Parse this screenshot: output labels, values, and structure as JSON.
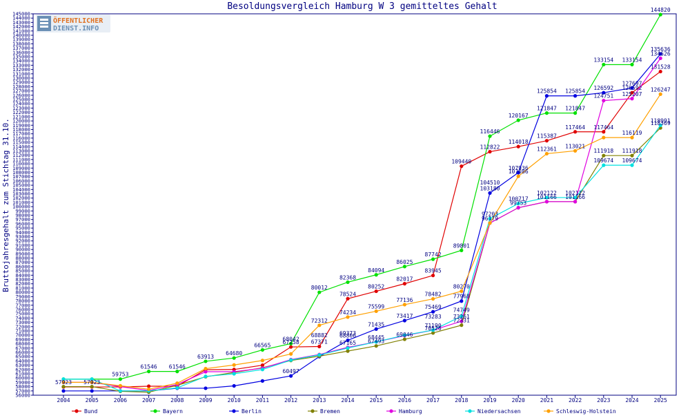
{
  "title": "Besoldungsvergleich Hamburg W 3 gemitteltes Gehalt",
  "logo": {
    "line1": "ÖFFENTLICHER",
    "line2": "DIENST.INFO"
  },
  "chart_data": {
    "type": "line",
    "title": "Besoldungsvergleich Hamburg W 3 gemitteltes Gehalt",
    "xlabel": "",
    "ylabel": "Bruttojahresgehalt zum Stichtag 31.10.",
    "ylim": [
      56000,
      145000
    ],
    "ytick_step": 1000,
    "grid": false,
    "legend_position": "bottom",
    "x": [
      "2004",
      "2005",
      "2006",
      "2007",
      "2008",
      "2009",
      "2010",
      "2011",
      "2012",
      "2013",
      "2014",
      "2015",
      "2016",
      "2017",
      "2018",
      "2019",
      "2020",
      "2021",
      "2022",
      "2023",
      "2024",
      "2025"
    ],
    "series": [
      {
        "name": "Bund",
        "color": "#e00000",
        "values": [
          57923,
          57923,
          57923,
          58100,
          58100,
          61947,
          62000,
          63000,
          67258,
          67371,
          78524,
          80252,
          82017,
          83945,
          109440,
          112822,
          114018,
          115387,
          117464,
          117464,
          126592,
          131528
        ]
      },
      {
        "name": "Bayern",
        "color": "#00e000",
        "values": [
          59753,
          59753,
          59753,
          61546,
          61546,
          63913,
          64680,
          66565,
          68042,
          80012,
          82368,
          84094,
          86025,
          87742,
          89801,
          116446,
          120167,
          121847,
          121847,
          133154,
          133154,
          144820
        ]
      },
      {
        "name": "Berlin",
        "color": "#0000e0",
        "values": [
          57000,
          57000,
          57000,
          57000,
          57623,
          57623,
          58173,
          59324,
          60497,
          65000,
          68806,
          71435,
          73417,
          75469,
          77968,
          103180,
          107936,
          125854,
          125854,
          126592,
          127697,
          135636
        ]
      },
      {
        "name": "Bremen",
        "color": "#808000",
        "values": [
          58000,
          58000,
          56900,
          56700,
          58300,
          60300,
          61300,
          62400,
          64100,
          65100,
          66300,
          67493,
          69046,
          70526,
          72331,
          96179,
          99753,
          101166,
          101166,
          111918,
          111918,
          118369
        ]
      },
      {
        "name": "Hamburg",
        "color": "#e000e0",
        "values": [
          59000,
          59000,
          58000,
          57100,
          58500,
          61477,
          61477,
          62300,
          64300,
          65500,
          67165,
          68445,
          69880,
          71190,
          73261,
          96179,
          99753,
          101166,
          101166,
          124751,
          125207,
          134626
        ]
      },
      {
        "name": "Niedersachsen",
        "color": "#00e0e0",
        "values": [
          59753,
          59753,
          57000,
          57000,
          57700,
          60389,
          61000,
          62000,
          64200,
          65394,
          67000,
          68445,
          70000,
          71190,
          74440,
          97203,
          100717,
          102122,
          102122,
          109674,
          109674,
          118991
        ]
      },
      {
        "name": "Schleswig-Holstein",
        "color": "#ffa000",
        "values": [
          59000,
          59000,
          58200,
          57400,
          58800,
          62200,
          63050,
          64100,
          65630,
          72312,
          74234,
          75599,
          77136,
          78482,
          80270,
          96179,
          107086,
          112361,
          113021,
          116119,
          116119,
          126247
        ]
      }
    ],
    "data_labels": [
      {
        "x": "2004",
        "y": 57923
      },
      {
        "x": "2005",
        "y": 57923
      },
      {
        "x": "2006",
        "y": 59753
      },
      {
        "x": "2007",
        "y": 61546
      },
      {
        "x": "2008",
        "y": 61546
      },
      {
        "x": "2009",
        "y": 63913
      },
      {
        "x": "2010",
        "y": 64680
      },
      {
        "x": "2011",
        "y": 66565
      },
      {
        "x": "2012",
        "y": 68042
      },
      {
        "x": "2012",
        "y": 67258
      },
      {
        "x": "2012",
        "y": 60497
      },
      {
        "x": "2013",
        "y": 80012
      },
      {
        "x": "2013",
        "y": 72312
      },
      {
        "x": "2013",
        "y": 68882
      },
      {
        "x": "2013",
        "y": 67371
      },
      {
        "x": "2014",
        "y": 82368
      },
      {
        "x": "2014",
        "y": 78524
      },
      {
        "x": "2014",
        "y": 74234
      },
      {
        "x": "2014",
        "y": 69373
      },
      {
        "x": "2014",
        "y": 68806
      },
      {
        "x": "2014",
        "y": 67165
      },
      {
        "x": "2015",
        "y": 84094
      },
      {
        "x": "2015",
        "y": 80252
      },
      {
        "x": "2015",
        "y": 75599
      },
      {
        "x": "2015",
        "y": 71435
      },
      {
        "x": "2015",
        "y": 68445
      },
      {
        "x": "2015",
        "y": 67493
      },
      {
        "x": "2016",
        "y": 86025
      },
      {
        "x": "2016",
        "y": 82017
      },
      {
        "x": "2016",
        "y": 77136
      },
      {
        "x": "2016",
        "y": 73417
      },
      {
        "x": "2016",
        "y": 69046
      },
      {
        "x": "2017",
        "y": 87742
      },
      {
        "x": "2017",
        "y": 83945
      },
      {
        "x": "2017",
        "y": 78482
      },
      {
        "x": "2017",
        "y": 75469
      },
      {
        "x": "2017",
        "y": 73283
      },
      {
        "x": "2017",
        "y": 71190
      },
      {
        "x": "2017",
        "y": 70526
      },
      {
        "x": "2018",
        "y": 109440
      },
      {
        "x": "2018",
        "y": 89801
      },
      {
        "x": "2018",
        "y": 80270
      },
      {
        "x": "2018",
        "y": 77968
      },
      {
        "x": "2018",
        "y": 74749
      },
      {
        "x": "2018",
        "y": 72331
      },
      {
        "x": "2018",
        "y": 73261
      },
      {
        "x": "2019",
        "y": 116446
      },
      {
        "x": "2019",
        "y": 112822
      },
      {
        "x": "2019",
        "y": 104510
      },
      {
        "x": "2019",
        "y": 103180
      },
      {
        "x": "2019",
        "y": 97203
      },
      {
        "x": "2019",
        "y": 96179
      },
      {
        "x": "2020",
        "y": 120167
      },
      {
        "x": "2020",
        "y": 114018
      },
      {
        "x": "2020",
        "y": 107936
      },
      {
        "x": "2020",
        "y": 107086
      },
      {
        "x": "2020",
        "y": 100717
      },
      {
        "x": "2020",
        "y": 99753
      },
      {
        "x": "2021",
        "y": 125854
      },
      {
        "x": "2021",
        "y": 121847
      },
      {
        "x": "2021",
        "y": 115387
      },
      {
        "x": "2021",
        "y": 112361
      },
      {
        "x": "2021",
        "y": 102122
      },
      {
        "x": "2021",
        "y": 101166
      },
      {
        "x": "2022",
        "y": 125854
      },
      {
        "x": "2022",
        "y": 121847
      },
      {
        "x": "2022",
        "y": 117464
      },
      {
        "x": "2022",
        "y": 113021
      },
      {
        "x": "2022",
        "y": 102122
      },
      {
        "x": "2022",
        "y": 101166
      },
      {
        "x": "2023",
        "y": 133154
      },
      {
        "x": "2023",
        "y": 126592
      },
      {
        "x": "2023",
        "y": 124751
      },
      {
        "x": "2023",
        "y": 117464
      },
      {
        "x": "2023",
        "y": 111918
      },
      {
        "x": "2023",
        "y": 109674
      },
      {
        "x": "2024",
        "y": 133154
      },
      {
        "x": "2024",
        "y": 127697
      },
      {
        "x": "2024",
        "y": 126592
      },
      {
        "x": "2024",
        "y": 125207
      },
      {
        "x": "2024",
        "y": 116119
      },
      {
        "x": "2024",
        "y": 111918
      },
      {
        "x": "2024",
        "y": 109674
      },
      {
        "x": "2025",
        "y": 144820
      },
      {
        "x": "2025",
        "y": 135636
      },
      {
        "x": "2025",
        "y": 134626
      },
      {
        "x": "2025",
        "y": 131528
      },
      {
        "x": "2025",
        "y": 126247
      },
      {
        "x": "2025",
        "y": 118991
      },
      {
        "x": "2025",
        "y": 118369
      }
    ]
  }
}
